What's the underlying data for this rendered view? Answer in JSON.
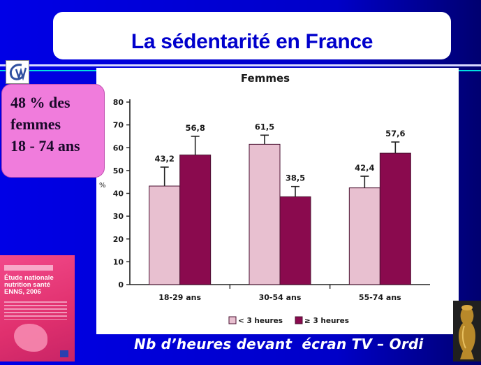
{
  "slide": {
    "title": "La sédentarité en France",
    "callout_lines": [
      "48 % des",
      "femmes",
      "18 - 74 ans"
    ],
    "footer": "Nb d’heures devant  écran TV – Ordi"
  },
  "book": {
    "title_lines": [
      "Étude nationale",
      "nutrition santé",
      "ENNS, 2006"
    ]
  },
  "colors": {
    "background": "#0000d0",
    "title_text": "#0000cc",
    "callout_bg": "#f07cdc",
    "series_low": "#e8c0d0",
    "series_high": "#8a0a4e"
  },
  "chart_data": {
    "type": "bar",
    "title": "Femmes",
    "ylabel": "%",
    "ylim": [
      0,
      80
    ],
    "yticks": [
      0,
      10,
      20,
      30,
      40,
      50,
      60,
      70,
      80
    ],
    "categories": [
      "18-29 ans",
      "30-54 ans",
      "55-74 ans"
    ],
    "series": [
      {
        "name": "< 3 heures",
        "color": "#e8c0d0",
        "values": [
          43.2,
          61.5,
          42.4
        ],
        "labels": [
          "43,2",
          "61,5",
          "42,4"
        ],
        "error_upper": [
          51.5,
          65.5,
          47.5
        ]
      },
      {
        "name": "≥ 3 heures",
        "color": "#8a0a4e",
        "values": [
          56.8,
          38.5,
          57.6
        ],
        "labels": [
          "56,8",
          "38,5",
          "57,6"
        ],
        "error_upper": [
          65,
          43,
          62.5
        ]
      }
    ],
    "legend_position": "bottom",
    "grid": false
  }
}
